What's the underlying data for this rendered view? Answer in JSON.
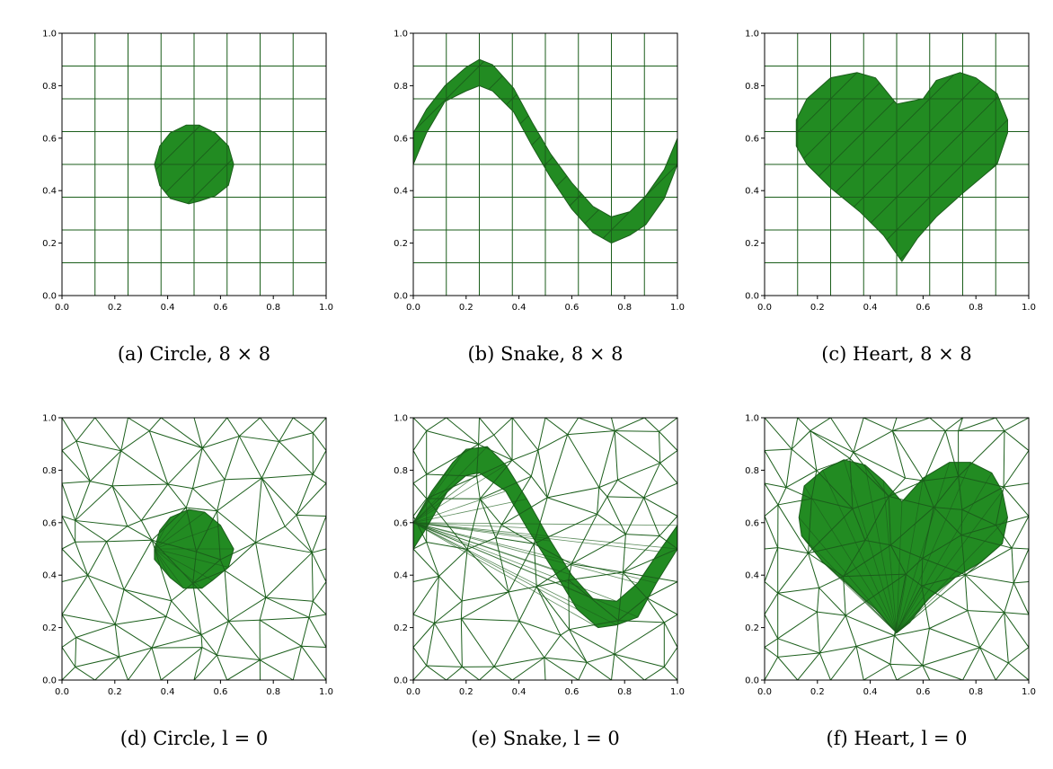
{
  "figure": {
    "fill_color": "#228b22",
    "edge_color": "#1b5e1b",
    "axis_color": "#000000"
  },
  "chart_data": [
    {
      "type": "mesh",
      "caption": "(a) Circle, 8 × 8",
      "xlim": [
        0,
        1
      ],
      "ylim": [
        0,
        1
      ],
      "xticks": [
        "0.0",
        "0.2",
        "0.4",
        "0.6",
        "0.8",
        "1.0"
      ],
      "yticks": [
        "0.0",
        "0.2",
        "0.4",
        "0.6",
        "0.8",
        "1.0"
      ],
      "mesh": "structured",
      "grid_n": 8,
      "shape": "circle",
      "region": [
        [
          0.35,
          0.5
        ],
        [
          0.37,
          0.57
        ],
        [
          0.41,
          0.62
        ],
        [
          0.47,
          0.65
        ],
        [
          0.52,
          0.65
        ],
        [
          0.58,
          0.62
        ],
        [
          0.63,
          0.57
        ],
        [
          0.65,
          0.5
        ],
        [
          0.63,
          0.42
        ],
        [
          0.58,
          0.38
        ],
        [
          0.52,
          0.36
        ],
        [
          0.48,
          0.35
        ],
        [
          0.41,
          0.37
        ],
        [
          0.37,
          0.42
        ]
      ]
    },
    {
      "type": "mesh",
      "caption": "(b) Snake, 8 × 8",
      "xlim": [
        0,
        1
      ],
      "ylim": [
        0,
        1
      ],
      "xticks": [
        "0.0",
        "0.2",
        "0.4",
        "0.6",
        "0.8",
        "1.0"
      ],
      "yticks": [
        "0.0",
        "0.2",
        "0.4",
        "0.6",
        "0.8",
        "1.0"
      ],
      "mesh": "structured",
      "grid_n": 8,
      "shape": "snake",
      "region": [
        [
          0.0,
          0.62
        ],
        [
          0.05,
          0.71
        ],
        [
          0.12,
          0.8
        ],
        [
          0.2,
          0.87
        ],
        [
          0.25,
          0.9
        ],
        [
          0.3,
          0.88
        ],
        [
          0.38,
          0.79
        ],
        [
          0.45,
          0.66
        ],
        [
          0.52,
          0.54
        ],
        [
          0.6,
          0.43
        ],
        [
          0.68,
          0.34
        ],
        [
          0.75,
          0.3
        ],
        [
          0.82,
          0.32
        ],
        [
          0.88,
          0.38
        ],
        [
          0.95,
          0.48
        ],
        [
          1.0,
          0.6
        ],
        [
          1.0,
          0.5
        ],
        [
          0.95,
          0.37
        ],
        [
          0.88,
          0.27
        ],
        [
          0.82,
          0.23
        ],
        [
          0.75,
          0.2
        ],
        [
          0.68,
          0.24
        ],
        [
          0.6,
          0.33
        ],
        [
          0.52,
          0.45
        ],
        [
          0.45,
          0.57
        ],
        [
          0.38,
          0.7
        ],
        [
          0.3,
          0.78
        ],
        [
          0.25,
          0.8
        ],
        [
          0.2,
          0.78
        ],
        [
          0.12,
          0.74
        ],
        [
          0.05,
          0.62
        ],
        [
          0.0,
          0.5
        ]
      ]
    },
    {
      "type": "mesh",
      "caption": "(c) Heart, 8 × 8",
      "xlim": [
        0,
        1
      ],
      "ylim": [
        0,
        1
      ],
      "xticks": [
        "0.0",
        "0.2",
        "0.4",
        "0.6",
        "0.8",
        "1.0"
      ],
      "yticks": [
        "0.0",
        "0.2",
        "0.4",
        "0.6",
        "0.8",
        "1.0"
      ],
      "mesh": "structured",
      "grid_n": 8,
      "shape": "heart",
      "region": [
        [
          0.52,
          0.13
        ],
        [
          0.45,
          0.23
        ],
        [
          0.36,
          0.32
        ],
        [
          0.25,
          0.41
        ],
        [
          0.16,
          0.5
        ],
        [
          0.12,
          0.57
        ],
        [
          0.12,
          0.67
        ],
        [
          0.16,
          0.75
        ],
        [
          0.25,
          0.83
        ],
        [
          0.35,
          0.85
        ],
        [
          0.42,
          0.83
        ],
        [
          0.5,
          0.73
        ],
        [
          0.6,
          0.75
        ],
        [
          0.65,
          0.82
        ],
        [
          0.74,
          0.85
        ],
        [
          0.8,
          0.83
        ],
        [
          0.88,
          0.77
        ],
        [
          0.92,
          0.67
        ],
        [
          0.92,
          0.62
        ],
        [
          0.88,
          0.5
        ],
        [
          0.75,
          0.39
        ],
        [
          0.65,
          0.3
        ],
        [
          0.58,
          0.22
        ]
      ]
    },
    {
      "type": "mesh",
      "caption": "(d) Circle, l = 0",
      "xlim": [
        0,
        1
      ],
      "ylim": [
        0,
        1
      ],
      "xticks": [
        "0.0",
        "0.2",
        "0.4",
        "0.6",
        "0.8",
        "1.0"
      ],
      "yticks": [
        "0.0",
        "0.2",
        "0.4",
        "0.6",
        "0.8",
        "1.0"
      ],
      "mesh": "unstructured",
      "mesh_seed": 11,
      "shape": "circle",
      "region": [
        [
          0.35,
          0.5
        ],
        [
          0.37,
          0.57
        ],
        [
          0.41,
          0.62
        ],
        [
          0.48,
          0.65
        ],
        [
          0.54,
          0.64
        ],
        [
          0.6,
          0.59
        ],
        [
          0.65,
          0.5
        ],
        [
          0.63,
          0.43
        ],
        [
          0.57,
          0.38
        ],
        [
          0.53,
          0.35
        ],
        [
          0.46,
          0.35
        ],
        [
          0.41,
          0.39
        ],
        [
          0.35,
          0.46
        ]
      ]
    },
    {
      "type": "mesh",
      "caption": "(e) Snake, l = 0",
      "xlim": [
        0,
        1
      ],
      "ylim": [
        0,
        1
      ],
      "xticks": [
        "0.0",
        "0.2",
        "0.4",
        "0.6",
        "0.8",
        "1.0"
      ],
      "yticks": [
        "0.0",
        "0.2",
        "0.4",
        "0.6",
        "0.8",
        "1.0"
      ],
      "mesh": "unstructured",
      "mesh_seed": 23,
      "shape": "snake",
      "region": [
        [
          0.0,
          0.6
        ],
        [
          0.07,
          0.72
        ],
        [
          0.15,
          0.83
        ],
        [
          0.2,
          0.88
        ],
        [
          0.28,
          0.89
        ],
        [
          0.35,
          0.82
        ],
        [
          0.43,
          0.69
        ],
        [
          0.52,
          0.53
        ],
        [
          0.6,
          0.4
        ],
        [
          0.68,
          0.31
        ],
        [
          0.77,
          0.3
        ],
        [
          0.85,
          0.37
        ],
        [
          0.93,
          0.49
        ],
        [
          1.0,
          0.59
        ],
        [
          1.0,
          0.5
        ],
        [
          0.92,
          0.37
        ],
        [
          0.85,
          0.24
        ],
        [
          0.77,
          0.21
        ],
        [
          0.7,
          0.2
        ],
        [
          0.62,
          0.27
        ],
        [
          0.53,
          0.42
        ],
        [
          0.43,
          0.58
        ],
        [
          0.35,
          0.72
        ],
        [
          0.25,
          0.79
        ],
        [
          0.2,
          0.78
        ],
        [
          0.13,
          0.72
        ],
        [
          0.05,
          0.58
        ],
        [
          0.0,
          0.5
        ]
      ]
    },
    {
      "type": "mesh",
      "caption": "(f) Heart, l = 0",
      "xlim": [
        0,
        1
      ],
      "ylim": [
        0,
        1
      ],
      "xticks": [
        "0.0",
        "0.2",
        "0.4",
        "0.6",
        "0.8",
        "1.0"
      ],
      "yticks": [
        "0.0",
        "0.2",
        "0.4",
        "0.6",
        "0.8",
        "1.0"
      ],
      "mesh": "unstructured",
      "mesh_seed": 37,
      "shape": "heart",
      "region": [
        [
          0.5,
          0.18
        ],
        [
          0.42,
          0.27
        ],
        [
          0.32,
          0.36
        ],
        [
          0.22,
          0.45
        ],
        [
          0.14,
          0.55
        ],
        [
          0.13,
          0.62
        ],
        [
          0.15,
          0.74
        ],
        [
          0.22,
          0.8
        ],
        [
          0.3,
          0.84
        ],
        [
          0.38,
          0.82
        ],
        [
          0.45,
          0.76
        ],
        [
          0.52,
          0.68
        ],
        [
          0.6,
          0.77
        ],
        [
          0.7,
          0.83
        ],
        [
          0.78,
          0.83
        ],
        [
          0.86,
          0.79
        ],
        [
          0.9,
          0.72
        ],
        [
          0.92,
          0.62
        ],
        [
          0.9,
          0.52
        ],
        [
          0.82,
          0.45
        ],
        [
          0.72,
          0.39
        ],
        [
          0.62,
          0.31
        ],
        [
          0.55,
          0.22
        ]
      ]
    }
  ]
}
